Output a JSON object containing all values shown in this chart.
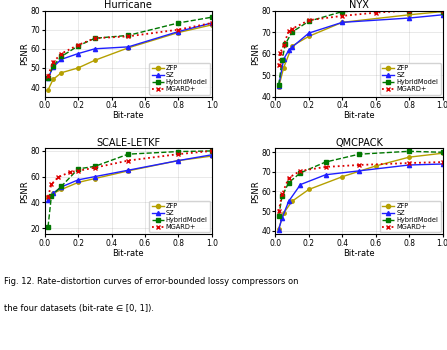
{
  "subplots": [
    {
      "title": "Hurricane",
      "ylim": [
        35,
        80
      ],
      "xlim": [
        0,
        1.0
      ],
      "yticks": [
        40,
        50,
        60,
        70,
        80
      ],
      "xticks": [
        0.0,
        0.2,
        0.4,
        0.6,
        0.8,
        1.0
      ],
      "ZFP": {
        "x": [
          0.02,
          0.05,
          0.1,
          0.2,
          0.3,
          0.5,
          0.8,
          1.0
        ],
        "y": [
          38.5,
          44.0,
          47.5,
          50.0,
          54.0,
          60.5,
          68.5,
          72.5
        ]
      },
      "SZ": {
        "x": [
          0.02,
          0.05,
          0.1,
          0.2,
          0.3,
          0.5,
          0.8,
          1.0
        ],
        "y": [
          44.5,
          50.5,
          54.5,
          57.5,
          60.0,
          61.0,
          69.0,
          73.5
        ]
      },
      "HybridModel": {
        "x": [
          0.02,
          0.05,
          0.1,
          0.2,
          0.3,
          0.5,
          0.8,
          1.0
        ],
        "y": [
          44.5,
          51.0,
          56.0,
          61.5,
          65.5,
          67.0,
          73.5,
          76.5
        ]
      },
      "MGARD+": {
        "x": [
          0.02,
          0.05,
          0.1,
          0.2,
          0.3,
          0.5,
          0.8,
          1.0
        ],
        "y": [
          46.0,
          53.0,
          57.5,
          62.0,
          65.5,
          66.5,
          70.0,
          73.5
        ]
      }
    },
    {
      "title": "NYX",
      "ylim": [
        40,
        80
      ],
      "xlim": [
        0,
        1.0
      ],
      "yticks": [
        40,
        50,
        60,
        70,
        80
      ],
      "xticks": [
        0.0,
        0.2,
        0.4,
        0.6,
        0.8,
        1.0
      ],
      "ZFP": {
        "x": [
          0.02,
          0.05,
          0.1,
          0.2,
          0.4,
          0.8,
          1.0
        ],
        "y": [
          44.5,
          53.5,
          63.5,
          68.0,
          74.5,
          78.0,
          79.5
        ]
      },
      "SZ": {
        "x": [
          0.02,
          0.05,
          0.08,
          0.1,
          0.2,
          0.4,
          0.8,
          1.0
        ],
        "y": [
          45.0,
          57.5,
          61.5,
          63.0,
          69.5,
          74.5,
          76.5,
          78.0
        ]
      },
      "HybridModel": {
        "x": [
          0.02,
          0.04,
          0.06,
          0.1,
          0.2,
          0.4,
          0.8,
          1.0
        ],
        "y": [
          45.5,
          57.0,
          64.5,
          70.0,
          75.0,
          79.5,
          80.0,
          79.5
        ]
      },
      "MGARD+": {
        "x": [
          0.02,
          0.03,
          0.05,
          0.08,
          0.1,
          0.2,
          0.4,
          0.6,
          0.8,
          1.0
        ],
        "y": [
          54.5,
          60.5,
          64.0,
          70.5,
          71.5,
          75.5,
          77.5,
          79.0,
          80.0,
          80.0
        ]
      }
    },
    {
      "title": "SCALE-LETKF",
      "ylim": [
        15,
        82
      ],
      "xlim": [
        0,
        1.0
      ],
      "yticks": [
        20,
        40,
        60,
        80
      ],
      "xticks": [
        0.0,
        0.2,
        0.4,
        0.6,
        0.8,
        1.0
      ],
      "ZFP": {
        "x": [
          0.02,
          0.05,
          0.1,
          0.2,
          0.3,
          0.5,
          0.8,
          1.0
        ],
        "y": [
          44.5,
          47.0,
          50.0,
          55.5,
          58.5,
          64.5,
          72.5,
          76.0
        ]
      },
      "SZ": {
        "x": [
          0.02,
          0.05,
          0.1,
          0.2,
          0.3,
          0.5,
          0.8,
          1.0
        ],
        "y": [
          41.5,
          47.0,
          52.0,
          57.5,
          60.0,
          65.0,
          72.5,
          77.0
        ]
      },
      "HybridModel": {
        "x": [
          0.02,
          0.04,
          0.1,
          0.2,
          0.3,
          0.5,
          0.8,
          1.0
        ],
        "y": [
          21.0,
          45.0,
          52.5,
          66.0,
          68.0,
          77.5,
          79.5,
          80.0
        ]
      },
      "MGARD+": {
        "x": [
          0.02,
          0.04,
          0.08,
          0.15,
          0.2,
          0.3,
          0.5,
          0.8,
          1.0
        ],
        "y": [
          44.5,
          54.0,
          59.5,
          63.5,
          64.5,
          67.0,
          72.5,
          77.5,
          80.0
        ]
      }
    },
    {
      "title": "QMCPACK",
      "ylim": [
        38,
        82
      ],
      "xlim": [
        0,
        1.0
      ],
      "yticks": [
        40,
        50,
        60,
        70,
        80
      ],
      "xticks": [
        0.0,
        0.2,
        0.4,
        0.6,
        0.8,
        1.0
      ],
      "ZFP": {
        "x": [
          0.02,
          0.05,
          0.1,
          0.2,
          0.4,
          0.6,
          0.8,
          1.0
        ],
        "y": [
          41.0,
          49.0,
          55.0,
          61.0,
          67.5,
          73.0,
          77.5,
          79.5
        ]
      },
      "SZ": {
        "x": [
          0.02,
          0.04,
          0.08,
          0.15,
          0.3,
          0.5,
          0.8,
          1.0
        ],
        "y": [
          40.5,
          46.5,
          55.0,
          63.5,
          68.5,
          70.5,
          73.5,
          74.0
        ]
      },
      "HybridModel": {
        "x": [
          0.02,
          0.04,
          0.08,
          0.15,
          0.3,
          0.5,
          0.8,
          1.0
        ],
        "y": [
          47.5,
          57.5,
          64.5,
          69.5,
          75.0,
          79.0,
          80.5,
          80.0
        ]
      },
      "MGARD+": {
        "x": [
          0.02,
          0.04,
          0.08,
          0.15,
          0.3,
          0.5,
          0.8,
          1.0
        ],
        "y": [
          50.0,
          58.5,
          67.0,
          70.5,
          72.5,
          73.5,
          74.5,
          75.0
        ]
      }
    }
  ],
  "colors": {
    "ZFP": "#b5a000",
    "SZ": "#1f1fff",
    "HybridModel": "#007700",
    "MGARD+": "#dd0000"
  },
  "caption_line1": "Fig. 12. Rate–distortion curves of error-bounded lossy compressors on",
  "caption_line2": "the four datasets (bit-rate ∈ [0, 1])."
}
